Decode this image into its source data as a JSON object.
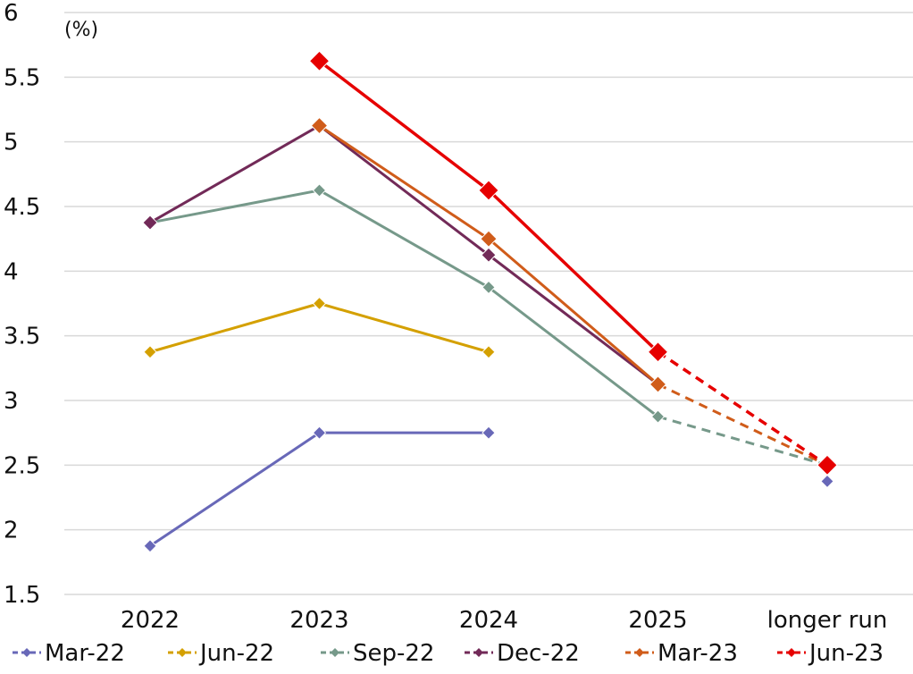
{
  "chart_data": {
    "type": "line",
    "title": "",
    "unit_label": "(%)",
    "xlabel": "",
    "ylabel": "",
    "categories": [
      "2022",
      "2023",
      "2024",
      "2025",
      "longer run"
    ],
    "ylim": [
      1.5,
      6
    ],
    "yticks": [
      "1.5",
      "2",
      "2.5",
      "3",
      "3.5",
      "4",
      "4.5",
      "5",
      "5.5",
      "6"
    ],
    "grid": true,
    "legend_position": "bottom",
    "series": [
      {
        "name": "Mar-22",
        "color": "#6868b8",
        "values": [
          1.875,
          2.75,
          2.75,
          null,
          2.375
        ]
      },
      {
        "name": "Jun-22",
        "color": "#d4a000",
        "values": [
          3.375,
          3.75,
          3.375,
          null,
          null
        ]
      },
      {
        "name": "Sep-22",
        "color": "#76998a",
        "values": [
          4.375,
          4.625,
          3.875,
          2.875,
          2.5
        ]
      },
      {
        "name": "Dec-22",
        "color": "#722a58",
        "values": [
          4.375,
          5.125,
          4.125,
          3.125,
          null
        ]
      },
      {
        "name": "Mar-23",
        "color": "#d05c1a",
        "values": [
          null,
          5.125,
          4.25,
          3.125,
          2.5
        ]
      },
      {
        "name": "Jun-23",
        "color": "#e60000",
        "values": [
          null,
          5.625,
          4.625,
          3.375,
          2.5
        ]
      }
    ]
  }
}
